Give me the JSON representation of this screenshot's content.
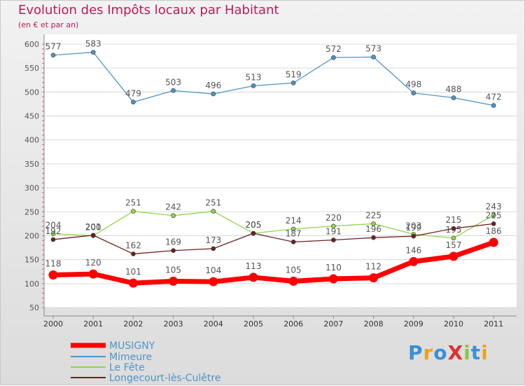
{
  "title": "Evolution des Impôts locaux par Habitant",
  "subtitle": "(en € et par an)",
  "logo_text": "ProXiti",
  "chart_data": {
    "type": "line",
    "title": "Evolution des Impôts locaux par Habitant",
    "subtitle": "(en € et par an)",
    "xlabel": "",
    "ylabel": "",
    "x": [
      "2000",
      "2001",
      "2002",
      "2003",
      "2004",
      "2005",
      "2006",
      "2007",
      "2008",
      "2009",
      "2010",
      "2011"
    ],
    "ylim": [
      50,
      600
    ],
    "yticks": [
      50,
      100,
      150,
      200,
      250,
      300,
      350,
      400,
      450,
      500,
      550,
      600
    ],
    "legend": "bottom-left",
    "series": [
      {
        "name": "MUSIGNY",
        "color": "#ff0000",
        "values": [
          118,
          120,
          101,
          105,
          104,
          113,
          105,
          110,
          112,
          146,
          157,
          186
        ],
        "labels": [
          "118",
          "120",
          "101",
          "105",
          "104",
          "113",
          "105",
          "110",
          "112",
          "146",
          "157",
          "186"
        ]
      },
      {
        "name": "Mimeure",
        "color": "#4f95c8",
        "values": [
          577,
          583,
          479,
          503,
          496,
          513,
          519,
          572,
          573,
          498,
          488,
          472
        ],
        "labels": [
          "577",
          "583",
          "479",
          "503",
          "496",
          "513",
          "519",
          "572",
          "573",
          "498",
          "488",
          "472"
        ]
      },
      {
        "name": "Le Fête",
        "color": "#8fd44a",
        "values": [
          204,
          200,
          251,
          242,
          251,
          205,
          214,
          220,
          225,
          203,
          195,
          243
        ],
        "labels": [
          "204",
          "200",
          "251",
          "242",
          "251",
          "205",
          "214",
          "220",
          "225",
          "203",
          "195",
          "243"
        ]
      },
      {
        "name": "Longecourt-lès-Culêtre",
        "color": "#6b2222",
        "values": [
          192,
          201,
          162,
          169,
          173,
          205,
          187,
          191,
          196,
          199,
          215,
          225
        ],
        "labels": [
          "192",
          "201",
          "162",
          "169",
          "173",
          "205",
          "187",
          "191",
          "196",
          "199",
          "215",
          "225"
        ]
      }
    ]
  }
}
